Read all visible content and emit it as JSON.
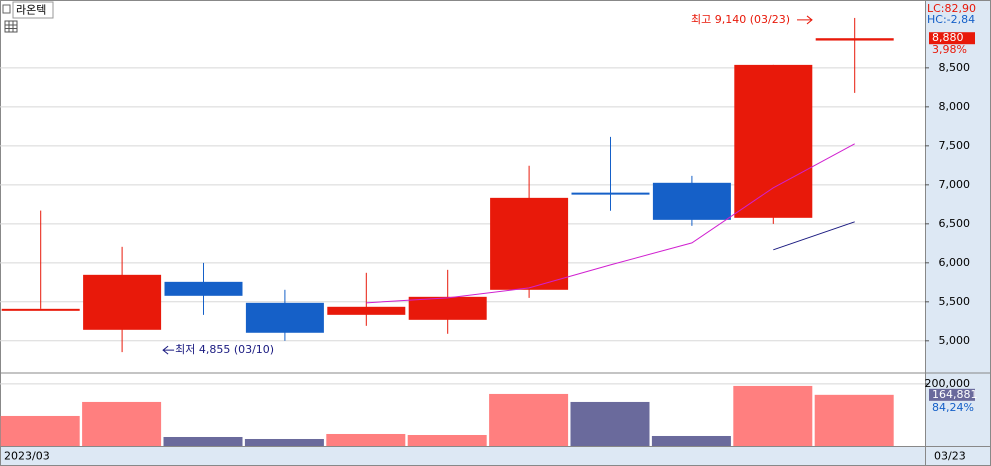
{
  "header": {
    "title": "라온텍"
  },
  "chart_data": [
    {
      "type": "candlestick",
      "open": [
        5410,
        5141,
        5756,
        5487,
        5333,
        5269,
        5654,
        6900,
        7026,
        6577,
        8850
      ],
      "high": [
        6670,
        6205,
        6000,
        5654,
        5872,
        5910,
        7244,
        7615,
        7115,
        8538,
        9140
      ],
      "low": [
        5410,
        4855,
        5333,
        5000,
        5192,
        5090,
        5551,
        6667,
        6474,
        6500,
        8179
      ],
      "close": [
        5410,
        5846,
        5577,
        5103,
        5436,
        5564,
        6833,
        6890,
        6551,
        8538,
        8880
      ],
      "up_color": "#e8190a",
      "down_color": "#1560c8",
      "series": [
        {
          "name": "MA5",
          "color": "#d020d0",
          "values": [
            null,
            null,
            null,
            null,
            5487,
            5551,
            5679,
            5974,
            6256,
            6962,
            7526
          ]
        },
        {
          "name": "MA10",
          "color": "#1a1a80",
          "values": [
            null,
            null,
            null,
            null,
            null,
            null,
            null,
            null,
            null,
            6167,
            6526
          ]
        }
      ],
      "ylim": [
        4600,
        9370
      ],
      "yticks": [
        {
          "value": 5000,
          "label": "5,000"
        },
        {
          "value": 5500,
          "label": "5,500"
        },
        {
          "value": 6000,
          "label": "6,000"
        },
        {
          "value": 6500,
          "label": "6,500"
        },
        {
          "value": 7000,
          "label": "7,000"
        },
        {
          "value": 7500,
          "label": "7,500"
        },
        {
          "value": 8000,
          "label": "8,000"
        },
        {
          "value": 8500,
          "label": "8,500"
        }
      ],
      "grid": true,
      "last_close_label": "8,880",
      "change_label": "3,98%",
      "lc_label": "LC:82,90",
      "hc_label": "HC:-2,84",
      "annotations": [
        "최고 9,140 (03/23)",
        "최저 4,855 (03/10)"
      ]
    },
    {
      "type": "volume",
      "values": [
        96774,
        141935,
        29032,
        22581,
        38710,
        35484,
        167742,
        141935,
        32258,
        193548,
        164881
      ],
      "up_color": "#ff7f7f",
      "down_color": "#6a6a9c",
      "ylim": [
        0,
        232000
      ],
      "yticks": [
        {
          "value": 200000,
          "label": "200,000"
        }
      ],
      "grid": true,
      "last_label": "164,881",
      "ratio_label": "84,24%"
    }
  ],
  "x_axis": {
    "start": "2023/03",
    "end": "03/23"
  }
}
